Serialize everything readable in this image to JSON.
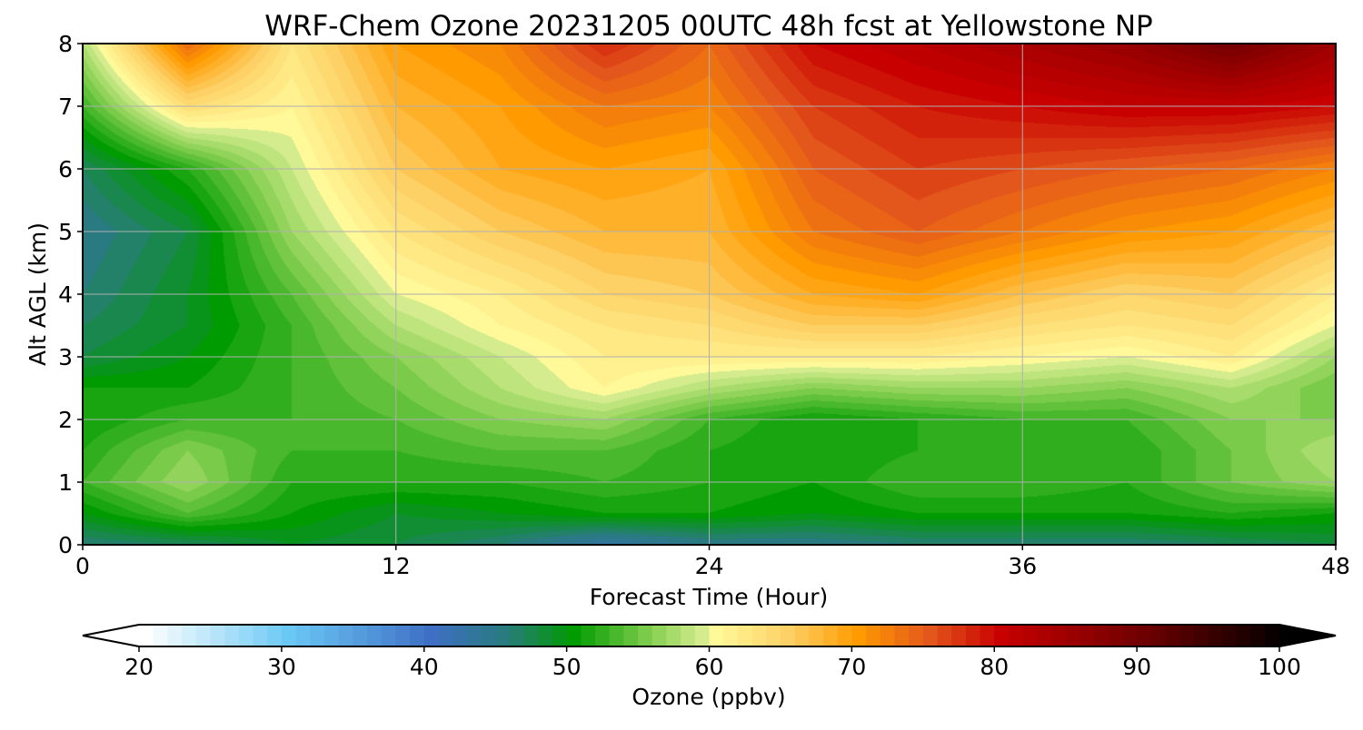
{
  "chart_data": {
    "type": "heatmap",
    "title": "WRF-Chem Ozone  20231205 00UTC 48h fcst at Yellowstone NP",
    "xlabel": "Forecast Time (Hour)",
    "ylabel": "Alt AGL (km)",
    "xlim": [
      0,
      48
    ],
    "ylim": [
      0,
      8
    ],
    "x_ticks": [
      0,
      12,
      24,
      36,
      48
    ],
    "y_ticks": [
      0,
      1,
      2,
      3,
      4,
      5,
      6,
      7,
      8
    ],
    "grid": true,
    "x_hours": [
      0,
      4,
      8,
      12,
      16,
      20,
      24,
      28,
      32,
      36,
      40,
      44,
      48
    ],
    "y_km": [
      0,
      0.5,
      1,
      1.5,
      2,
      2.5,
      3,
      3.5,
      4,
      5,
      6,
      7,
      8
    ],
    "values_ppbv": [
      [
        46,
        47,
        49,
        48,
        46,
        43,
        45,
        45,
        46,
        46,
        46,
        47,
        48
      ],
      [
        50,
        54,
        51,
        49,
        50,
        51,
        51,
        50,
        51,
        51,
        51,
        52,
        51
      ],
      [
        53,
        57,
        52,
        52,
        52,
        53,
        52,
        51,
        53,
        53,
        52,
        55,
        57
      ],
      [
        52,
        56,
        53,
        53,
        54,
        54,
        52,
        51,
        52,
        53,
        52,
        55,
        58
      ],
      [
        51,
        53,
        53,
        54,
        56,
        57,
        53,
        51,
        52,
        53,
        53,
        56,
        56
      ],
      [
        51,
        51,
        53,
        55,
        58,
        61,
        58,
        56,
        57,
        57,
        56,
        58,
        55
      ],
      [
        48,
        50,
        53,
        56,
        59,
        62,
        62,
        62,
        62,
        61,
        60,
        62,
        57
      ],
      [
        47,
        49,
        53,
        58,
        61,
        63,
        64,
        66,
        66,
        64,
        63,
        64,
        60
      ],
      [
        46,
        49,
        54,
        60,
        62,
        65,
        66,
        69,
        70,
        67,
        65,
        66,
        62
      ],
      [
        45,
        48,
        57,
        63,
        66,
        68,
        68,
        73,
        75,
        73,
        71,
        70,
        67
      ],
      [
        47,
        52,
        59,
        66,
        69,
        70,
        69,
        75,
        77,
        76,
        75,
        74,
        72
      ],
      [
        53,
        64,
        61,
        68,
        70,
        73,
        72,
        77,
        79,
        80,
        81,
        81,
        80
      ],
      [
        58,
        74,
        63,
        70,
        72,
        78,
        74,
        80,
        82,
        84,
        86,
        90,
        85
      ]
    ],
    "colorbar": {
      "label": "Ozone  (ppbv)",
      "ticks": [
        20,
        30,
        40,
        50,
        60,
        70,
        80,
        90,
        100
      ],
      "min": 20,
      "max": 100,
      "extend": "both",
      "stops": [
        {
          "v": 20,
          "color": "#ffffff"
        },
        {
          "v": 30,
          "color": "#6ac8f5"
        },
        {
          "v": 40,
          "color": "#3f6fc4"
        },
        {
          "v": 45,
          "color": "#2a7a82"
        },
        {
          "v": 50,
          "color": "#009b00"
        },
        {
          "v": 55,
          "color": "#7acb4a"
        },
        {
          "v": 59,
          "color": "#d4ec8e"
        },
        {
          "v": 60,
          "color": "#fff99a"
        },
        {
          "v": 65,
          "color": "#fdd166"
        },
        {
          "v": 70,
          "color": "#ff9a00"
        },
        {
          "v": 75,
          "color": "#e3561c"
        },
        {
          "v": 80,
          "color": "#c80000"
        },
        {
          "v": 90,
          "color": "#6e0000"
        },
        {
          "v": 100,
          "color": "#000000"
        }
      ]
    }
  }
}
